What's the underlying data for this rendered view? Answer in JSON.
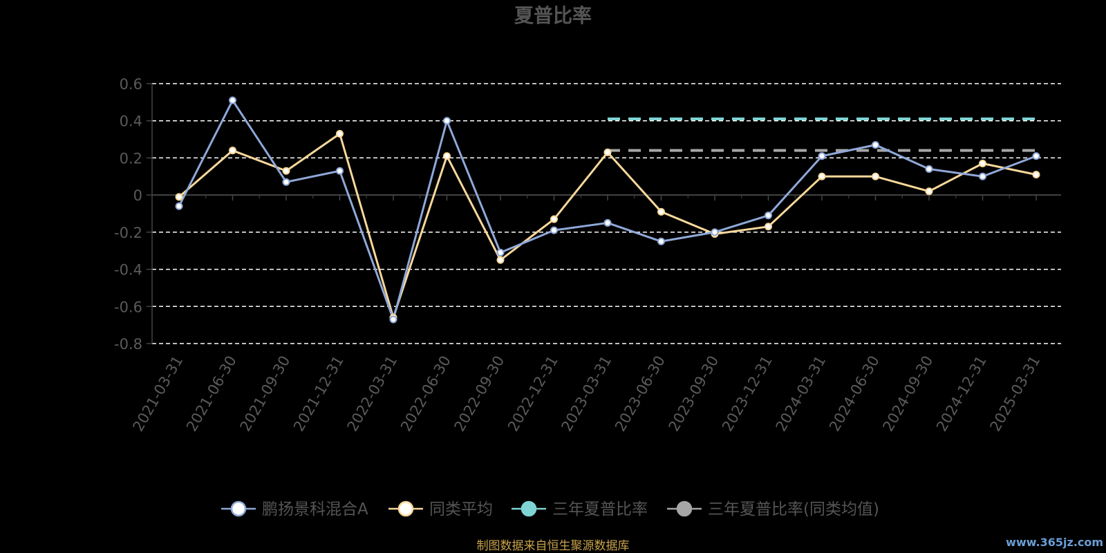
{
  "colors": {
    "fund": "#8fa8d8",
    "category_avg": "#f8d89a",
    "three_year": "#7fd4d4",
    "three_year_avg": "#a6a6a6",
    "grid": "#ffffff",
    "axis": "#444444",
    "text": "#5a5a5a",
    "source": "#c8a24a",
    "watermark": "#6a9ed6"
  },
  "footer": {
    "source": "制图数据来自恒生聚源数据库",
    "watermark": "www.365jz.com"
  },
  "chart_data": {
    "type": "line",
    "title": "夏普比率",
    "categories": [
      "2021-03-31",
      "2021-06-30",
      "2021-09-30",
      "2021-12-31",
      "2022-03-31",
      "2022-06-30",
      "2022-09-30",
      "2022-12-31",
      "2023-03-31",
      "2023-06-30",
      "2023-09-30",
      "2023-12-31",
      "2024-03-31",
      "2024-06-30",
      "2024-09-30",
      "2024-12-31",
      "2025-03-31"
    ],
    "ylim": [
      -0.8,
      0.6
    ],
    "yticks": [
      0.6,
      0.4,
      0.2,
      0,
      -0.2,
      -0.4,
      -0.6,
      -0.8
    ],
    "ytick_labels": [
      "0.6",
      "0.4",
      "0.2",
      "0",
      "-0.2",
      "-0.4",
      "-0.6",
      "-0.8"
    ],
    "grid": true,
    "legend_position": "bottom",
    "series": [
      {
        "name": "鹏扬景科混合A",
        "values": [
          -0.06,
          0.51,
          0.07,
          0.13,
          -0.67,
          0.4,
          -0.31,
          -0.19,
          -0.15,
          -0.25,
          -0.2,
          -0.11,
          0.21,
          0.27,
          0.14,
          0.1,
          0.21
        ]
      },
      {
        "name": "同类平均",
        "values": [
          -0.01,
          0.24,
          0.13,
          0.33,
          -0.66,
          0.21,
          -0.35,
          -0.13,
          0.23,
          -0.09,
          -0.21,
          -0.17,
          0.1,
          0.1,
          0.02,
          0.17,
          0.11
        ]
      },
      {
        "name": "三年夏普比率",
        "from": "2023-03-31",
        "to": "2025-03-31",
        "value": 0.41
      },
      {
        "name": "三年夏普比率(同类均值)",
        "from": "2023-03-31",
        "to": "2025-03-31",
        "value": 0.24
      }
    ]
  }
}
